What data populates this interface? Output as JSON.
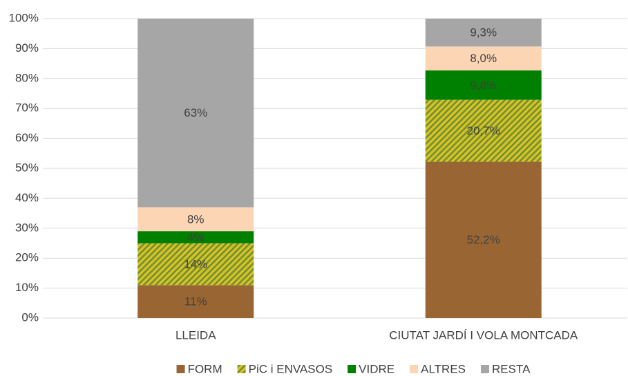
{
  "chart_data": {
    "type": "stacked_bar",
    "categories": [
      "LLEIDA",
      "CIUTAT JARDÍ I VOLA MONTCADA"
    ],
    "series": [
      {
        "name": "FORM",
        "color": "#996633",
        "values": [
          11,
          52.2
        ],
        "value_labels": [
          "11%",
          "52,2%"
        ]
      },
      {
        "name": "PiC i ENVASOS",
        "color": "#d9c21f",
        "pattern": "hatch",
        "pattern_color": "#6b8e3a",
        "values": [
          14,
          20.7
        ],
        "value_labels": [
          "14%",
          "20,7%"
        ]
      },
      {
        "name": "VIDRE",
        "color": "#008000",
        "values": [
          4,
          9.8
        ],
        "value_labels": [
          "4%",
          "9,8%"
        ]
      },
      {
        "name": "ALTRES",
        "color": "#fcd5b5",
        "values": [
          8,
          8.0
        ],
        "value_labels": [
          "8%",
          "8,0%"
        ]
      },
      {
        "name": "RESTA",
        "color": "#a6a6a6",
        "values": [
          63,
          9.3
        ],
        "value_labels": [
          "63%",
          "9,3%"
        ]
      }
    ],
    "ylim": [
      0,
      100
    ],
    "yticks": [
      {
        "value": 0,
        "label": "0%"
      },
      {
        "value": 10,
        "label": "10%"
      },
      {
        "value": 20,
        "label": "20%"
      },
      {
        "value": 30,
        "label": "30%"
      },
      {
        "value": 40,
        "label": "40%"
      },
      {
        "value": 50,
        "label": "50%"
      },
      {
        "value": 60,
        "label": "60%"
      },
      {
        "value": 70,
        "label": "70%"
      },
      {
        "value": 80,
        "label": "80%"
      },
      {
        "value": 90,
        "label": "90%"
      },
      {
        "value": 100,
        "label": "100%"
      }
    ],
    "grid": true,
    "legend": "bottom"
  }
}
